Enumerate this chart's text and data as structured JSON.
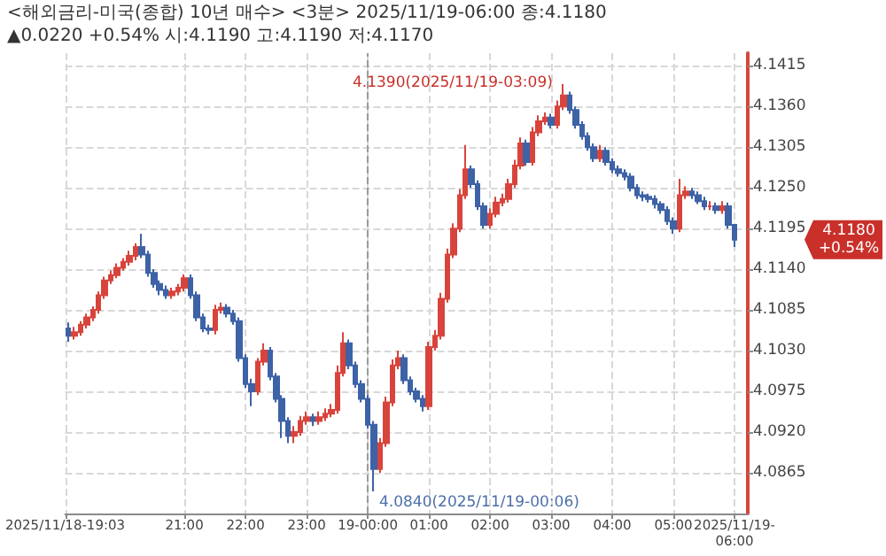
{
  "chart_data": {
    "type": "candlestick",
    "title": "<해외금리-미국(종합) 10년 매수> <3분> 2025/11/19-06:00 종:4.1180 ▲0.0220 +0.54% 시:4.1190 고:4.1190 저:4.1170",
    "x": [
      "2025-11-18T19:06",
      "2025-11-18T19:12",
      "2025-11-18T19:18",
      "2025-11-18T19:24",
      "2025-11-18T19:30",
      "2025-11-18T19:36",
      "2025-11-18T19:42",
      "2025-11-18T19:48",
      "2025-11-18T19:54",
      "2025-11-18T20:00",
      "2025-11-18T20:06",
      "2025-11-18T20:12",
      "2025-11-18T20:18",
      "2025-11-18T20:24",
      "2025-11-18T20:30",
      "2025-11-18T20:36",
      "2025-11-18T20:42",
      "2025-11-18T20:48",
      "2025-11-18T20:54",
      "2025-11-18T21:00",
      "2025-11-18T21:06",
      "2025-11-18T21:12",
      "2025-11-18T21:18",
      "2025-11-18T21:24",
      "2025-11-18T21:30",
      "2025-11-18T21:36",
      "2025-11-18T21:42",
      "2025-11-18T21:48",
      "2025-11-18T21:54",
      "2025-11-18T22:00",
      "2025-11-18T22:06",
      "2025-11-18T22:12",
      "2025-11-18T22:18",
      "2025-11-18T22:24",
      "2025-11-18T22:30",
      "2025-11-18T22:36",
      "2025-11-18T22:42",
      "2025-11-18T22:48",
      "2025-11-18T22:54",
      "2025-11-18T23:00",
      "2025-11-18T23:06",
      "2025-11-18T23:12",
      "2025-11-18T23:18",
      "2025-11-18T23:24",
      "2025-11-18T23:30",
      "2025-11-18T23:36",
      "2025-11-18T23:42",
      "2025-11-18T23:48",
      "2025-11-18T23:54",
      "2025-11-19T00:00",
      "2025-11-19T00:06",
      "2025-11-19T00:12",
      "2025-11-19T00:18",
      "2025-11-19T00:24",
      "2025-11-19T00:30",
      "2025-11-19T00:36",
      "2025-11-19T00:42",
      "2025-11-19T00:48",
      "2025-11-19T00:54",
      "2025-11-19T01:00",
      "2025-11-19T01:06",
      "2025-11-19T01:12",
      "2025-11-19T01:18",
      "2025-11-19T01:24",
      "2025-11-19T01:30",
      "2025-11-19T01:36",
      "2025-11-19T01:42",
      "2025-11-19T01:48",
      "2025-11-19T01:54",
      "2025-11-19T02:00",
      "2025-11-19T02:06",
      "2025-11-19T02:12",
      "2025-11-19T02:18",
      "2025-11-19T02:24",
      "2025-11-19T02:30",
      "2025-11-19T02:36",
      "2025-11-19T02:42",
      "2025-11-19T02:48",
      "2025-11-19T02:54",
      "2025-11-19T03:00",
      "2025-11-19T03:06",
      "2025-11-19T03:12",
      "2025-11-19T03:18",
      "2025-11-19T03:24",
      "2025-11-19T03:30",
      "2025-11-19T03:36",
      "2025-11-19T03:42",
      "2025-11-19T03:48",
      "2025-11-19T03:54",
      "2025-11-19T04:00",
      "2025-11-19T04:06",
      "2025-11-19T04:12",
      "2025-11-19T04:18",
      "2025-11-19T04:24",
      "2025-11-19T04:30",
      "2025-11-19T04:36",
      "2025-11-19T04:42",
      "2025-11-19T04:48",
      "2025-11-19T04:54",
      "2025-11-19T05:00",
      "2025-11-19T05:06",
      "2025-11-19T05:12",
      "2025-11-19T05:18",
      "2025-11-19T05:24",
      "2025-11-19T05:30",
      "2025-11-19T05:36",
      "2025-11-19T05:42",
      "2025-11-19T05:48",
      "2025-11-19T05:54",
      "2025-11-19T06:00"
    ],
    "ohlc": [
      [
        4.106,
        4.1068,
        4.1042,
        4.105
      ],
      [
        4.105,
        4.1062,
        4.1045,
        4.1055
      ],
      [
        4.1055,
        4.107,
        4.105,
        4.1065
      ],
      [
        4.1065,
        4.108,
        4.106,
        4.1075
      ],
      [
        4.1075,
        4.109,
        4.107,
        4.1085
      ],
      [
        4.1085,
        4.111,
        4.108,
        4.1105
      ],
      [
        4.1105,
        4.113,
        4.11,
        4.1125
      ],
      [
        4.1125,
        4.1138,
        4.112,
        4.1132
      ],
      [
        4.1132,
        4.1148,
        4.1128,
        4.1142
      ],
      [
        4.1142,
        4.1155,
        4.1138,
        4.115
      ],
      [
        4.115,
        4.1165,
        4.1145,
        4.1158
      ],
      [
        4.1158,
        4.1175,
        4.1152,
        4.117
      ],
      [
        4.117,
        4.1188,
        4.1155,
        4.116
      ],
      [
        4.116,
        4.1165,
        4.113,
        4.1135
      ],
      [
        4.1135,
        4.114,
        4.1115,
        4.112
      ],
      [
        4.112,
        4.1125,
        4.1105,
        4.1112
      ],
      [
        4.1112,
        4.1118,
        4.11,
        4.1105
      ],
      [
        4.1105,
        4.1115,
        4.11,
        4.111
      ],
      [
        4.111,
        4.112,
        4.1105,
        4.1115
      ],
      [
        4.1115,
        4.1133,
        4.111,
        4.1128
      ],
      [
        4.1128,
        4.1133,
        4.11,
        4.1105
      ],
      [
        4.1105,
        4.111,
        4.107,
        4.1075
      ],
      [
        4.1075,
        4.108,
        4.1055,
        4.106
      ],
      [
        4.106,
        4.1065,
        4.1052,
        4.1058
      ],
      [
        4.1058,
        4.1092,
        4.1052,
        4.1085
      ],
      [
        4.1085,
        4.1095,
        4.108,
        4.1088
      ],
      [
        4.1088,
        4.1093,
        4.1075,
        4.108
      ],
      [
        4.108,
        4.1085,
        4.1065,
        4.107
      ],
      [
        4.107,
        4.1075,
        4.1015,
        4.102
      ],
      [
        4.102,
        4.1025,
        4.098,
        4.0985
      ],
      [
        4.0985,
        4.0992,
        4.0955,
        4.0975
      ],
      [
        4.0975,
        4.102,
        4.097,
        4.1015
      ],
      [
        4.1015,
        4.104,
        4.101,
        4.103
      ],
      [
        4.103,
        4.1035,
        4.099,
        4.0995
      ],
      [
        4.0995,
        4.1,
        4.096,
        4.0965
      ],
      [
        4.0965,
        4.097,
        4.0912,
        4.0935
      ],
      [
        4.0935,
        4.094,
        4.0905,
        4.0915
      ],
      [
        4.0915,
        4.0928,
        4.0905,
        4.092
      ],
      [
        4.092,
        4.0942,
        4.0915,
        4.0935
      ],
      [
        4.0935,
        4.0948,
        4.093,
        4.094
      ],
      [
        4.094,
        4.0945,
        4.0928,
        4.0935
      ],
      [
        4.0935,
        4.0948,
        4.093,
        4.094
      ],
      [
        4.094,
        4.0952,
        4.0935,
        4.0945
      ],
      [
        4.0945,
        4.0958,
        4.094,
        4.095
      ],
      [
        4.095,
        4.101,
        4.0945,
        4.1
      ],
      [
        4.1,
        4.1055,
        4.0995,
        4.104
      ],
      [
        4.104,
        4.1045,
        4.1005,
        4.101
      ],
      [
        4.101,
        4.1015,
        4.098,
        4.0985
      ],
      [
        4.0985,
        4.099,
        4.096,
        4.0965
      ],
      [
        4.0965,
        4.097,
        4.0925,
        4.093
      ],
      [
        4.093,
        4.0935,
        4.084,
        4.087
      ],
      [
        4.087,
        4.0912,
        4.0865,
        4.0905
      ],
      [
        4.0905,
        4.0968,
        4.09,
        4.096
      ],
      [
        4.096,
        4.1018,
        4.0955,
        4.101
      ],
      [
        4.101,
        4.103,
        4.1005,
        4.102
      ],
      [
        4.102,
        4.1025,
        4.0985,
        4.099
      ],
      [
        4.099,
        4.0995,
        4.097,
        4.0975
      ],
      [
        4.0975,
        4.098,
        4.096,
        4.0965
      ],
      [
        4.0965,
        4.097,
        4.0948,
        4.0955
      ],
      [
        4.0955,
        4.1042,
        4.095,
        4.1035
      ],
      [
        4.1035,
        4.1058,
        4.103,
        4.105
      ],
      [
        4.105,
        4.1108,
        4.1045,
        4.11
      ],
      [
        4.11,
        4.1168,
        4.1095,
        4.116
      ],
      [
        4.116,
        4.1202,
        4.1155,
        4.1195
      ],
      [
        4.1195,
        4.1248,
        4.119,
        4.124
      ],
      [
        4.124,
        4.1308,
        4.1235,
        4.1275
      ],
      [
        4.1275,
        4.128,
        4.125,
        4.1255
      ],
      [
        4.1255,
        4.126,
        4.122,
        4.1225
      ],
      [
        4.1225,
        4.123,
        4.1195,
        4.12
      ],
      [
        4.12,
        4.1222,
        4.1195,
        4.1215
      ],
      [
        4.1215,
        4.1238,
        4.121,
        4.123
      ],
      [
        4.123,
        4.1242,
        4.1225,
        4.1235
      ],
      [
        4.1235,
        4.1262,
        4.123,
        4.1255
      ],
      [
        4.1255,
        4.1288,
        4.125,
        4.128
      ],
      [
        4.128,
        4.1318,
        4.1275,
        4.131
      ],
      [
        4.131,
        4.1315,
        4.128,
        4.1285
      ],
      [
        4.1285,
        4.1332,
        4.128,
        4.1325
      ],
      [
        4.1325,
        4.1348,
        4.132,
        4.134
      ],
      [
        4.134,
        4.1352,
        4.1335,
        4.1345
      ],
      [
        4.1345,
        4.135,
        4.133,
        4.1335
      ],
      [
        4.1335,
        4.1368,
        4.133,
        4.136
      ],
      [
        4.136,
        4.139,
        4.1355,
        4.1375
      ],
      [
        4.1375,
        4.138,
        4.135,
        4.1355
      ],
      [
        4.1355,
        4.136,
        4.133,
        4.1335
      ],
      [
        4.1335,
        4.134,
        4.1315,
        4.132
      ],
      [
        4.132,
        4.1325,
        4.13,
        4.1305
      ],
      [
        4.1305,
        4.131,
        4.1285,
        4.129
      ],
      [
        4.129,
        4.1308,
        4.1285,
        4.13
      ],
      [
        4.13,
        4.1305,
        4.128,
        4.1285
      ],
      [
        4.1285,
        4.129,
        4.127,
        4.1275
      ],
      [
        4.1275,
        4.128,
        4.1265,
        4.127
      ],
      [
        4.127,
        4.1275,
        4.126,
        4.1265
      ],
      [
        4.1265,
        4.127,
        4.1245,
        4.125
      ],
      [
        4.125,
        4.1255,
        4.1235,
        4.124
      ],
      [
        4.124,
        4.1245,
        4.1232,
        4.1238
      ],
      [
        4.1238,
        4.1242,
        4.123,
        4.1235
      ],
      [
        4.1235,
        4.124,
        4.1222,
        4.1228
      ],
      [
        4.1228,
        4.1232,
        4.1215,
        4.122
      ],
      [
        4.122,
        4.1225,
        4.12,
        4.1205
      ],
      [
        4.1205,
        4.121,
        4.1188,
        4.1195
      ],
      [
        4.1195,
        4.1262,
        4.119,
        4.124
      ],
      [
        4.124,
        4.1252,
        4.1235,
        4.1245
      ],
      [
        4.1245,
        4.125,
        4.1235,
        4.124
      ],
      [
        4.124,
        4.1245,
        4.1228,
        4.1232
      ],
      [
        4.1232,
        4.1238,
        4.122,
        4.1225
      ],
      [
        4.1225,
        4.1232,
        4.122,
        4.1225
      ],
      [
        4.1225,
        4.123,
        4.1215,
        4.122
      ],
      [
        4.122,
        4.1232,
        4.1215,
        4.1225
      ],
      [
        4.1225,
        4.123,
        4.1195,
        4.12
      ],
      [
        4.12,
        4.12,
        4.117,
        4.118
      ]
    ],
    "xlim": [
      "2025-11-18T19:03",
      "2025-11-19T06:13"
    ],
    "xticks": [
      {
        "value": "2025-11-18T19:03",
        "label": "2025/11/18-19:03"
      },
      {
        "value": "2025-11-18T21:00",
        "label": "21:00"
      },
      {
        "value": "2025-11-18T22:00",
        "label": "22:00"
      },
      {
        "value": "2025-11-18T23:00",
        "label": "23:00"
      },
      {
        "value": "2025-11-19T00:00",
        "label": "19-00:00"
      },
      {
        "value": "2025-11-19T01:00",
        "label": "01:00"
      },
      {
        "value": "2025-11-19T02:00",
        "label": "02:00"
      },
      {
        "value": "2025-11-19T03:00",
        "label": "03:00"
      },
      {
        "value": "2025-11-19T04:00",
        "label": "04:00"
      },
      {
        "value": "2025-11-19T05:00",
        "label": "05:00"
      },
      {
        "value": "2025-11-19T06:00",
        "label": "2025/11/19-06:00"
      }
    ],
    "ylim": [
      4.081,
      4.1432
    ],
    "yticks": [
      4.0865,
      {
        "value": 4.092,
        "label": "4.0920"
      },
      4.0975,
      {
        "value": 4.103,
        "label": "4.1030"
      },
      4.1085,
      {
        "value": 4.114,
        "label": "4.1140"
      },
      4.1195,
      {
        "value": 4.125,
        "label": "4.1250"
      },
      4.1305,
      {
        "value": 4.136,
        "label": "4.1360"
      },
      4.1415
    ],
    "grid": true,
    "ref_lines": [
      {
        "axis": "x",
        "value": "2025-11-19T00:00",
        "label": null,
        "color": "#9a9a9a",
        "line_style": "dashed"
      }
    ],
    "annotations": [
      "4.1390(2025/11/19-03:09)",
      "4.0840(2025/11/19-00:06)",
      "4.1180 +0.54%"
    ]
  }
}
